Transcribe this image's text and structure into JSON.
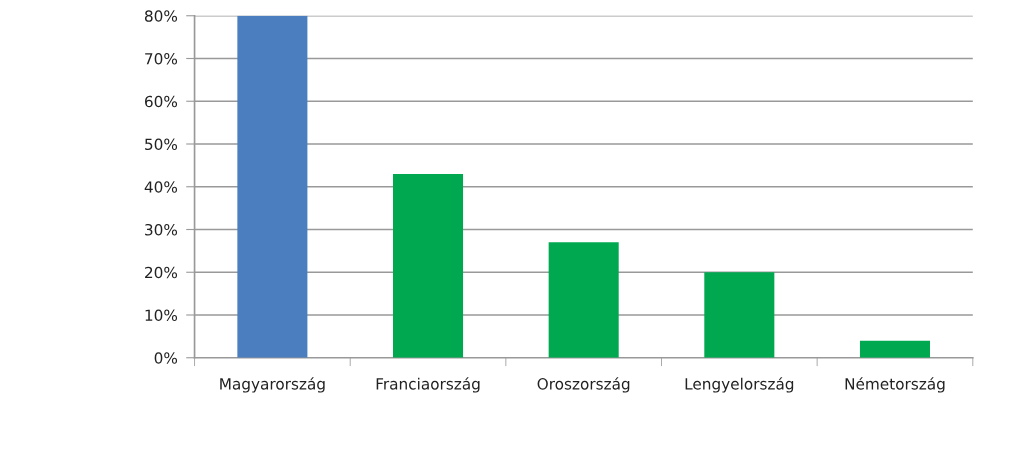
{
  "chart_data": {
    "type": "bar",
    "categories": [
      "Magyarország",
      "Franciaország",
      "Oroszország",
      "Lengyelország",
      "Németország"
    ],
    "values": [
      80,
      43,
      27,
      20,
      4
    ],
    "colors": [
      "#4a7ebf",
      "#00a84f",
      "#00a84f",
      "#00a84f",
      "#00a84f"
    ],
    "ylim": [
      0,
      80
    ],
    "yticks": [
      {
        "value": 0,
        "label": "0%"
      },
      {
        "value": 10,
        "label": "10%"
      },
      {
        "value": 20,
        "label": "20%"
      },
      {
        "value": 30,
        "label": "30%"
      },
      {
        "value": 40,
        "label": "40%"
      },
      {
        "value": 50,
        "label": "50%"
      },
      {
        "value": 60,
        "label": "60%"
      },
      {
        "value": 70,
        "label": "70%"
      },
      {
        "value": 80,
        "label": "80%"
      }
    ],
    "grid": "y"
  }
}
